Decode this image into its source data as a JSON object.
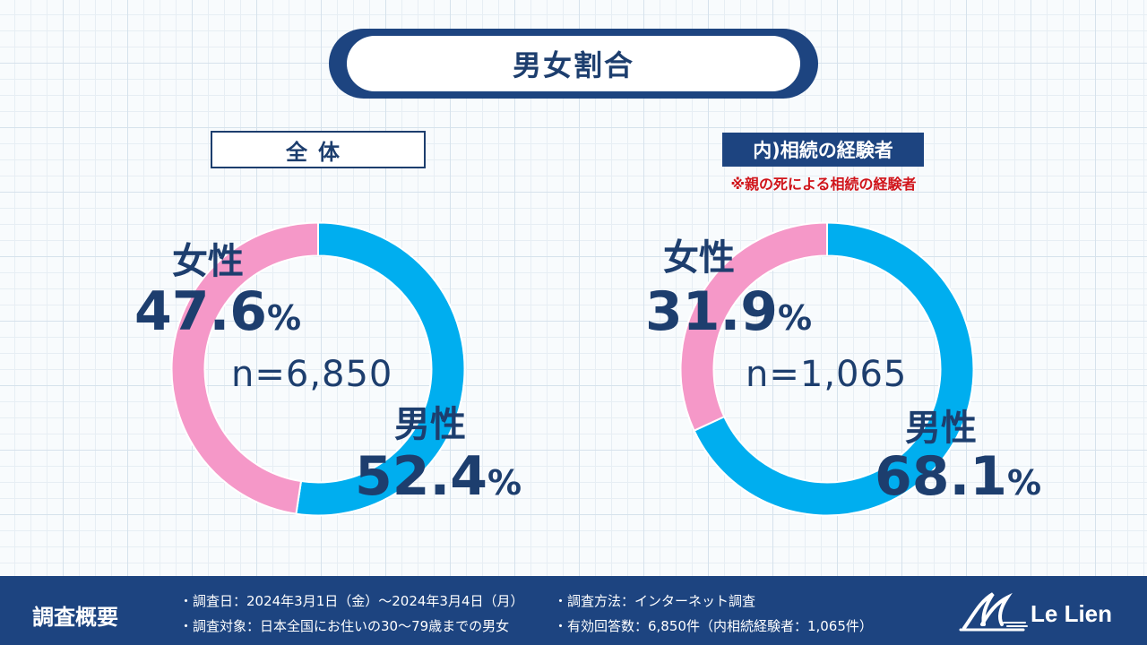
{
  "title": "男女割合",
  "panels": [
    {
      "label": "全体",
      "n_label": "n=6,850"
    },
    {
      "label": "内)相続の経験者",
      "note": "※親の死による相続の経験者",
      "n_label": "n=1,065"
    }
  ],
  "colors": {
    "male": "#00aeef",
    "female": "#f598c8",
    "navy": "#1d4480",
    "text": "#1d3e6e",
    "note": "#d0141a"
  },
  "chart_data": [
    {
      "type": "pie",
      "title": "全体",
      "series": [
        {
          "name": "男性",
          "value": 52.4,
          "display": "52.4",
          "unit": "%"
        },
        {
          "name": "女性",
          "value": 47.6,
          "display": "47.6",
          "unit": "%"
        }
      ],
      "center_label": "n=6,850"
    },
    {
      "type": "pie",
      "title": "内)相続の経験者",
      "series": [
        {
          "name": "男性",
          "value": 68.1,
          "display": "68.1",
          "unit": "%"
        },
        {
          "name": "女性",
          "value": 31.9,
          "display": "31.9",
          "unit": "%"
        }
      ],
      "center_label": "n=1,065"
    }
  ],
  "footer": {
    "title": "調査概要",
    "lines": [
      "・調査日：2024年3月1日（金）～2024年3月4日（月）",
      "・調査対象：日本全国にお住いの30～79歳までの男女",
      "・調査方法：インターネット調査",
      "・有効回答数：6,850件（内相続経験者：1,065件）"
    ],
    "logo_text": "Le Lien"
  }
}
